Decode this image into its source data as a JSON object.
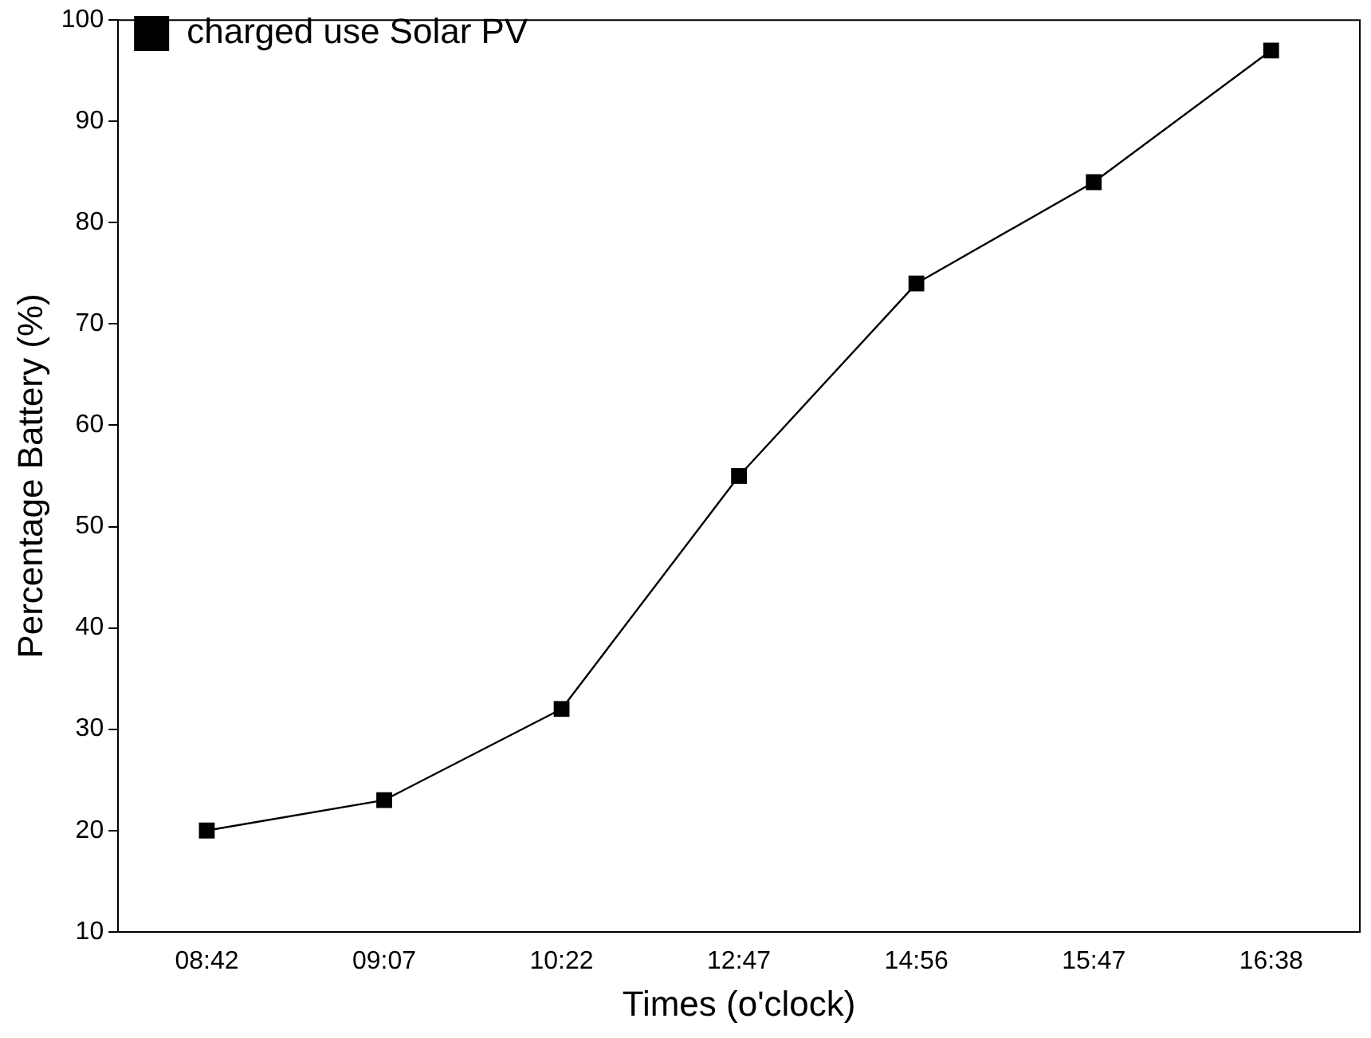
{
  "chart_data": {
    "type": "line",
    "xlabel": "Times (o'clock)",
    "ylabel": "Percentage Battery (%)",
    "categories": [
      "08:42",
      "09:07",
      "10:22",
      "12:47",
      "14:56",
      "15:47",
      "16:38"
    ],
    "series": [
      {
        "name": "charged use Solar PV",
        "color": "#000000",
        "values": [
          20,
          23,
          32,
          55,
          74,
          84,
          97
        ]
      }
    ],
    "ylim": [
      10,
      100
    ],
    "yticks": [
      10,
      20,
      30,
      40,
      50,
      60,
      70,
      80,
      90,
      100
    ],
    "grid": false,
    "legend": "top left",
    "marker": "square",
    "line_style": "solid"
  }
}
